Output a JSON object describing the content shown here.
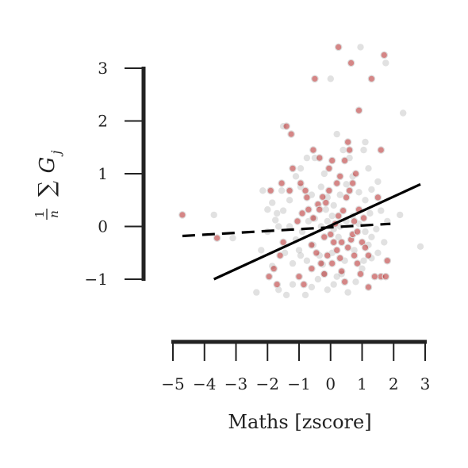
{
  "chart_data": {
    "type": "scatter",
    "title": "",
    "xlabel": "Maths [zscore]",
    "ylabel": "1/n ∑ G_j",
    "ylabel_parts": {
      "num": "1",
      "den": "n",
      "sum": "∑",
      "var": "G",
      "sub": "j"
    },
    "xlim": [
      -5,
      3
    ],
    "ylim": [
      -1,
      3
    ],
    "x_ticks": [
      -5,
      -4,
      -3,
      -2,
      -1,
      0,
      1,
      2,
      3
    ],
    "x_tick_labels": [
      "−5",
      "−4",
      "−3",
      "−2",
      "−1",
      "0",
      "1",
      "2",
      "3"
    ],
    "y_ticks": [
      -1,
      0,
      1,
      2,
      3
    ],
    "y_tick_labels": [
      "−1",
      "0",
      "1",
      "2",
      "3"
    ],
    "grid": false,
    "series": [
      {
        "color": "#b22222",
        "points": [
          [
            -4.7,
            0.22
          ],
          [
            -3.6,
            -0.22
          ],
          [
            -1.9,
            0.68
          ],
          [
            -1.55,
            0.82
          ],
          [
            -1.3,
            0.68
          ],
          [
            -1.2,
            1.1
          ],
          [
            -0.95,
            0.82
          ],
          [
            -0.8,
            0.68
          ],
          [
            -0.7,
            0.32
          ],
          [
            -0.55,
            0.16
          ],
          [
            -0.4,
            0.42
          ],
          [
            -0.35,
            0.32
          ],
          [
            -0.25,
            0.56
          ],
          [
            -0.15,
            0.45
          ],
          [
            -0.6,
            -0.35
          ],
          [
            -0.45,
            -0.5
          ],
          [
            -0.3,
            -0.7
          ],
          [
            -0.2,
            -0.9
          ],
          [
            -0.1,
            -0.55
          ],
          [
            0.0,
            -0.15
          ],
          [
            0.1,
            -0.3
          ],
          [
            0.2,
            -0.45
          ],
          [
            0.3,
            -0.6
          ],
          [
            0.35,
            -0.85
          ],
          [
            0.45,
            -1.05
          ],
          [
            0.55,
            -0.4
          ],
          [
            0.65,
            -0.25
          ],
          [
            0.75,
            -0.55
          ],
          [
            0.85,
            -0.7
          ],
          [
            1.0,
            -0.3
          ],
          [
            1.1,
            -0.4
          ],
          [
            1.2,
            -0.55
          ],
          [
            0.15,
            0.05
          ],
          [
            0.25,
            0.2
          ],
          [
            0.4,
            0.3
          ],
          [
            0.5,
            0.55
          ],
          [
            0.6,
            0.68
          ],
          [
            0.7,
            0.82
          ],
          [
            0.8,
            1.0
          ],
          [
            0.45,
            1.25
          ],
          [
            0.3,
            0.95
          ],
          [
            0.2,
            0.82
          ],
          [
            0.6,
            1.45
          ],
          [
            0.55,
            1.6
          ],
          [
            0.9,
            2.2
          ],
          [
            1.3,
            2.8
          ],
          [
            0.65,
            3.1
          ],
          [
            0.25,
            3.4
          ],
          [
            -0.5,
            2.8
          ],
          [
            -1.4,
            1.9
          ],
          [
            -1.25,
            1.75
          ],
          [
            -0.55,
            1.45
          ],
          [
            -0.35,
            1.3
          ],
          [
            -0.05,
            1.1
          ],
          [
            0.05,
            1.25
          ],
          [
            -1.5,
            -0.3
          ],
          [
            -1.6,
            -0.55
          ],
          [
            -1.8,
            -0.8
          ],
          [
            -1.95,
            -0.95
          ],
          [
            -1.7,
            -1.1
          ],
          [
            -1.0,
            -0.95
          ],
          [
            -0.85,
            -1.1
          ],
          [
            -0.6,
            -0.8
          ],
          [
            -0.9,
            0.25
          ],
          [
            -1.05,
            0.1
          ],
          [
            -0.75,
            0.55
          ],
          [
            1.5,
            0.55
          ],
          [
            1.6,
            -0.95
          ],
          [
            1.75,
            -0.95
          ],
          [
            1.8,
            -0.65
          ],
          [
            1.4,
            -0.95
          ],
          [
            1.2,
            -1.15
          ],
          [
            0.95,
            -0.9
          ],
          [
            1.6,
            1.45
          ],
          [
            1.7,
            3.25
          ],
          [
            0.7,
            -0.15
          ],
          [
            0.85,
            -0.1
          ],
          [
            0.05,
            -0.7
          ],
          [
            -0.2,
            -0.2
          ],
          [
            -0.05,
            0.68
          ],
          [
            0.35,
            -0.3
          ],
          [
            1.05,
            0.16
          ],
          [
            0.9,
            0.32
          ],
          [
            0.75,
            0.1
          ]
        ]
      },
      {
        "color": "#bdbdbd",
        "points": [
          [
            -3.7,
            0.22
          ],
          [
            -3.1,
            -0.22
          ],
          [
            -2.2,
            -0.45
          ],
          [
            -1.85,
            -0.75
          ],
          [
            -1.65,
            -1.2
          ],
          [
            -2.35,
            -1.25
          ],
          [
            -1.4,
            -1.3
          ],
          [
            -1.2,
            -1.1
          ],
          [
            -0.8,
            -1.3
          ],
          [
            -0.6,
            -1.15
          ],
          [
            -0.4,
            -1.0
          ],
          [
            -0.2,
            -0.9
          ],
          [
            -0.1,
            -1.2
          ],
          [
            0.1,
            -1.1
          ],
          [
            0.35,
            -0.9
          ],
          [
            0.55,
            -1.25
          ],
          [
            0.8,
            -1.05
          ],
          [
            1.0,
            -0.8
          ],
          [
            1.3,
            -0.6
          ],
          [
            1.5,
            -0.5
          ],
          [
            1.7,
            -0.3
          ],
          [
            1.3,
            -0.2
          ],
          [
            1.1,
            -0.1
          ],
          [
            0.9,
            0.05
          ],
          [
            0.7,
            0.2
          ],
          [
            0.5,
            0.1
          ],
          [
            0.3,
            0.0
          ],
          [
            0.1,
            -0.05
          ],
          [
            -0.1,
            0.1
          ],
          [
            -0.3,
            0.0
          ],
          [
            -0.5,
            0.15
          ],
          [
            -0.7,
            0.1
          ],
          [
            -0.9,
            -0.1
          ],
          [
            -1.1,
            -0.25
          ],
          [
            -1.3,
            0.0
          ],
          [
            -1.5,
            0.3
          ],
          [
            -1.7,
            0.25
          ],
          [
            -1.85,
            0.45
          ],
          [
            -1.3,
            0.5
          ],
          [
            -0.95,
            0.75
          ],
          [
            -0.6,
            0.6
          ],
          [
            -0.3,
            0.75
          ],
          [
            -0.1,
            0.55
          ],
          [
            0.1,
            0.4
          ],
          [
            0.3,
            0.6
          ],
          [
            0.5,
            0.8
          ],
          [
            0.7,
            0.95
          ],
          [
            0.9,
            0.65
          ],
          [
            1.1,
            0.5
          ],
          [
            1.3,
            0.7
          ],
          [
            1.5,
            0.85
          ],
          [
            1.6,
            0.3
          ],
          [
            1.8,
            0.1
          ],
          [
            2.2,
            0.22
          ],
          [
            2.85,
            -0.38
          ],
          [
            2.3,
            2.15
          ],
          [
            1.75,
            3.1
          ],
          [
            0.95,
            3.4
          ],
          [
            0.0,
            2.8
          ],
          [
            -1.5,
            1.9
          ],
          [
            -0.95,
            1.1
          ],
          [
            -0.5,
            1.3
          ],
          [
            -0.2,
            1.0
          ],
          [
            0.2,
            1.75
          ],
          [
            0.6,
            1.3
          ],
          [
            1.1,
            1.6
          ],
          [
            1.05,
            1.45
          ],
          [
            1.2,
            1.1
          ],
          [
            0.4,
            1.45
          ],
          [
            -0.75,
            1.3
          ],
          [
            -1.1,
            0.95
          ],
          [
            -1.55,
            0.68
          ],
          [
            -2.15,
            0.68
          ],
          [
            -2.0,
            0.32
          ],
          [
            -1.65,
            0.0
          ],
          [
            -1.45,
            -0.5
          ],
          [
            -1.0,
            -0.45
          ],
          [
            -0.75,
            -0.65
          ],
          [
            -0.55,
            -0.35
          ],
          [
            -0.35,
            -0.55
          ],
          [
            0.05,
            -0.5
          ],
          [
            0.25,
            -0.2
          ],
          [
            0.45,
            -0.65
          ],
          [
            0.75,
            -0.45
          ],
          [
            1.05,
            -0.65
          ],
          [
            1.2,
            -0.35
          ],
          [
            1.45,
            -0.05
          ],
          [
            1.25,
            0.25
          ],
          [
            -0.15,
            0.32
          ],
          [
            0.05,
            0.2
          ],
          [
            -1.2,
            -0.7
          ],
          [
            -0.95,
            -0.55
          ],
          [
            -0.25,
            -0.72
          ],
          [
            0.2,
            -0.95
          ],
          [
            -2.0,
            -0.1
          ],
          [
            -1.75,
            0.12
          ]
        ]
      }
    ],
    "trend_lines": [
      {
        "style": "solid",
        "color": "#000000",
        "x": [
          -3.7,
          2.85
        ],
        "y": [
          -1.0,
          0.8
        ]
      },
      {
        "style": "dashed",
        "color": "#000000",
        "x": [
          -4.7,
          1.9
        ],
        "y": [
          -0.18,
          0.05
        ]
      }
    ]
  }
}
